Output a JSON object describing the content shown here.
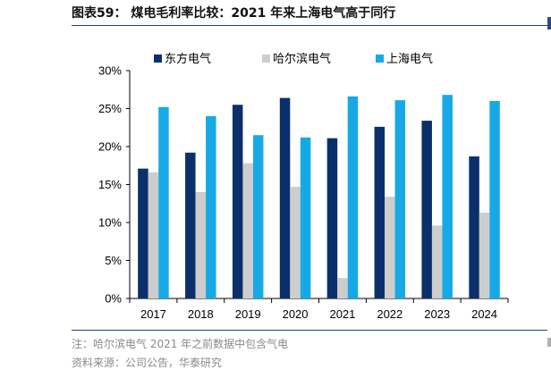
{
  "header": {
    "title": "图表59： 煤电毛利率比较：2021 年来上海电气高于同行"
  },
  "footer": {
    "note": "注：哈尔滨电气 2021 年之前数据中包含气电",
    "source": "资料来源：公司公告，华泰研究"
  },
  "colors": {
    "dongfang": "#0b2f6b",
    "harbin": "#cdcdcd",
    "shanghai": "#17a9e6",
    "rule": "#1f3f7a"
  },
  "chart_data": {
    "type": "bar",
    "title": "",
    "xlabel": "",
    "ylabel": "",
    "categories": [
      "2017",
      "2018",
      "2019",
      "2020",
      "2021",
      "2022",
      "2023",
      "2024"
    ],
    "series": [
      {
        "name": "东方电气",
        "values": [
          17.1,
          19.2,
          25.5,
          26.4,
          21.1,
          22.6,
          23.4,
          18.7
        ]
      },
      {
        "name": "哈尔滨电气",
        "values": [
          16.6,
          14.0,
          17.8,
          14.7,
          2.7,
          13.4,
          9.6,
          11.3
        ]
      },
      {
        "name": "上海电气",
        "values": [
          25.2,
          24.0,
          21.5,
          21.2,
          26.6,
          26.1,
          26.8,
          26.0
        ]
      }
    ],
    "ylim": [
      0,
      30
    ],
    "yticks": [
      "0%",
      "5%",
      "10%",
      "15%",
      "20%",
      "25%",
      "30%"
    ],
    "legend": "top",
    "grid": false
  }
}
